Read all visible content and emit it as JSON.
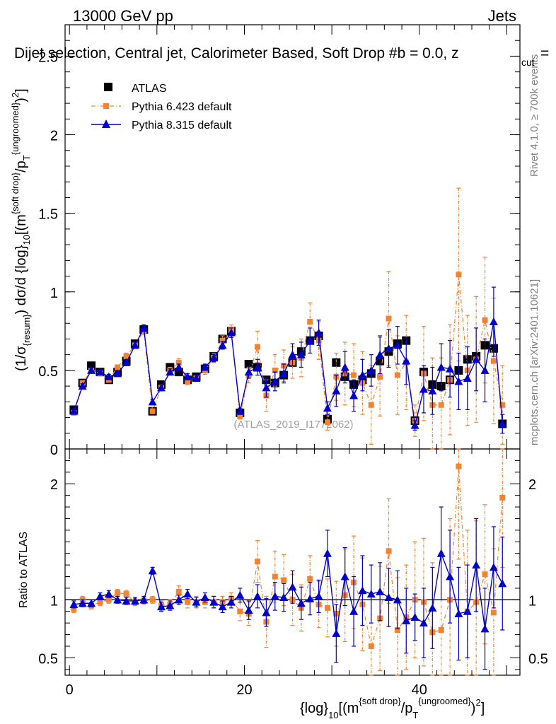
{
  "header": {
    "energy_label": "13000 GeV pp",
    "category_label": "Jets",
    "plot_title": "Dijet selection, Central jet, Calorimeter Based, Soft Drop #b = 0.0, z",
    "plot_title_sub": "cut",
    "plot_title_end": " ="
  },
  "side_text": {
    "rivet": "Rivet 4.1.0, ≥ 700k events",
    "mcplots": "mcplots.cern.ch [arXiv:2401.10621]"
  },
  "watermark": "(ATLAS_2019_I1772062)",
  "axes": {
    "ylabel_main": "(1/σ{resum}) dσ/d {log}10[(m{soft drop}/pT{ungroomed})²]",
    "ylabel_ratio": "Ratio to ATLAS",
    "xlabel": "{log}10[(m{soft drop}/pT{ungroomed})²]"
  },
  "colors": {
    "atlas": "#000000",
    "pythia6": "#f5822f",
    "pythia8": "#0000cc"
  },
  "chart_data": [
    {
      "type": "scatter",
      "panel": "main",
      "xlim": [
        -0.5,
        51.5
      ],
      "ylim": [
        0,
        2.7
      ],
      "yticks": [
        0,
        0.5,
        1,
        1.5,
        2,
        2.5
      ],
      "ytick_labels": [
        "0",
        "0.5",
        "1",
        "1.5",
        "2",
        "2.5"
      ],
      "legend_position": "top-left",
      "legend": [
        "ATLAS",
        "Pythia 6.423 default",
        "Pythia 8.315 default"
      ],
      "series": [
        {
          "name": "ATLAS",
          "style": "square",
          "x": [
            0.5,
            1.5,
            2.5,
            3.5,
            4.5,
            5.5,
            6.5,
            7.5,
            8.5,
            9.5,
            10.5,
            11.5,
            12.5,
            13.5,
            14.5,
            15.5,
            16.5,
            17.5,
            18.5,
            19.5,
            20.5,
            21.5,
            22.5,
            23.5,
            24.5,
            25.5,
            26.5,
            27.5,
            28.5,
            29.5,
            30.5,
            31.5,
            32.5,
            33.5,
            34.5,
            35.5,
            36.5,
            37.5,
            38.5,
            39.5,
            40.5,
            41.5,
            42.5,
            43.5,
            44.5,
            45.5,
            46.5,
            47.5,
            48.5,
            49.5
          ],
          "values": [
            0.25,
            0.42,
            0.53,
            0.49,
            0.44,
            0.49,
            0.56,
            0.67,
            0.76,
            0.24,
            0.41,
            0.52,
            0.49,
            0.44,
            0.46,
            0.51,
            0.59,
            0.7,
            0.75,
            0.23,
            0.54,
            0.52,
            0.44,
            0.42,
            0.47,
            0.55,
            0.62,
            0.69,
            0.72,
            0.19,
            0.55,
            0.46,
            0.41,
            0.44,
            0.48,
            0.56,
            0.62,
            0.67,
            0.69,
            0.18,
            0.49,
            0.41,
            0.4,
            0.44,
            0.5,
            0.57,
            0.59,
            0.66,
            0.64,
            0.16
          ]
        },
        {
          "name": "Pythia 6.423 default",
          "style": "square-dashdot",
          "x": [
            0.5,
            1.5,
            2.5,
            3.5,
            4.5,
            5.5,
            6.5,
            7.5,
            8.5,
            9.5,
            10.5,
            11.5,
            12.5,
            13.5,
            14.5,
            15.5,
            16.5,
            17.5,
            18.5,
            19.5,
            20.5,
            21.5,
            22.5,
            23.5,
            24.5,
            25.5,
            26.5,
            27.5,
            28.5,
            29.5,
            30.5,
            31.5,
            32.5,
            33.5,
            34.5,
            35.5,
            36.5,
            37.5,
            38.5,
            39.5,
            40.5,
            41.5,
            42.5,
            43.5,
            44.5,
            45.5,
            46.5,
            47.5,
            48.5,
            49.5
          ],
          "values": [
            0.23,
            0.42,
            0.5,
            0.48,
            0.44,
            0.52,
            0.59,
            0.66,
            0.75,
            0.24,
            0.39,
            0.5,
            0.55,
            0.43,
            0.45,
            0.5,
            0.58,
            0.69,
            0.76,
            0.21,
            0.47,
            0.65,
            0.34,
            0.5,
            0.53,
            0.55,
            0.58,
            0.81,
            0.69,
            0.17,
            0.46,
            0.48,
            0.47,
            0.42,
            0.28,
            0.46,
            0.83,
            0.47,
            0.55,
            0.18,
            0.48,
            0.28,
            0.28,
            0.44,
            1.11,
            0.5,
            0.57,
            0.82,
            0.56,
            0.28
          ],
          "errors": [
            0.015,
            0.015,
            0.015,
            0.015,
            0.015,
            0.015,
            0.02,
            0.02,
            0.02,
            0.015,
            0.02,
            0.02,
            0.025,
            0.02,
            0.02,
            0.025,
            0.03,
            0.03,
            0.03,
            0.02,
            0.05,
            0.1,
            0.1,
            0.1,
            0.1,
            0.1,
            0.12,
            0.12,
            0.12,
            0.05,
            0.15,
            0.2,
            0.2,
            0.2,
            0.25,
            0.25,
            0.3,
            0.25,
            0.3,
            0.1,
            0.3,
            0.3,
            0.3,
            0.35,
            0.55,
            0.35,
            0.4,
            0.4,
            0.4,
            0.25
          ]
        },
        {
          "name": "Pythia 8.315 default",
          "style": "triangle-solid",
          "x": [
            0.5,
            1.5,
            2.5,
            3.5,
            4.5,
            5.5,
            6.5,
            7.5,
            8.5,
            9.5,
            10.5,
            11.5,
            12.5,
            13.5,
            14.5,
            15.5,
            16.5,
            17.5,
            18.5,
            19.5,
            20.5,
            21.5,
            22.5,
            23.5,
            24.5,
            25.5,
            26.5,
            27.5,
            28.5,
            29.5,
            30.5,
            31.5,
            32.5,
            33.5,
            34.5,
            35.5,
            36.5,
            37.5,
            38.5,
            39.5,
            40.5,
            41.5,
            42.5,
            43.5,
            44.5,
            45.5,
            46.5,
            47.5,
            48.5,
            49.5
          ],
          "values": [
            0.24,
            0.4,
            0.5,
            0.49,
            0.46,
            0.48,
            0.55,
            0.66,
            0.77,
            0.3,
            0.39,
            0.49,
            0.52,
            0.46,
            0.45,
            0.52,
            0.58,
            0.66,
            0.74,
            0.24,
            0.49,
            0.52,
            0.39,
            0.43,
            0.48,
            0.6,
            0.6,
            0.69,
            0.74,
            0.26,
            0.37,
            0.52,
            0.34,
            0.47,
            0.5,
            0.6,
            0.64,
            0.66,
            0.56,
            0.15,
            0.38,
            0.37,
            0.52,
            0.51,
            0.43,
            0.45,
            0.57,
            0.5,
            0.81,
            0.16
          ],
          "errors": [
            0.015,
            0.015,
            0.015,
            0.015,
            0.015,
            0.015,
            0.02,
            0.02,
            0.02,
            0.015,
            0.02,
            0.02,
            0.02,
            0.02,
            0.02,
            0.02,
            0.025,
            0.025,
            0.03,
            0.02,
            0.04,
            0.05,
            0.06,
            0.06,
            0.06,
            0.07,
            0.08,
            0.08,
            0.08,
            0.04,
            0.1,
            0.1,
            0.1,
            0.1,
            0.1,
            0.12,
            0.12,
            0.12,
            0.15,
            0.03,
            0.15,
            0.15,
            0.15,
            0.18,
            0.18,
            0.2,
            0.2,
            0.2,
            0.22,
            0.06
          ]
        }
      ]
    },
    {
      "type": "scatter",
      "panel": "ratio",
      "xlim": [
        -0.5,
        51.5
      ],
      "ylim": [
        0.35,
        2.3
      ],
      "yticks": [
        0.5,
        1,
        2
      ],
      "ytick_labels": [
        "0.5",
        "1",
        "2"
      ],
      "xticks": [
        0,
        20,
        40
      ],
      "xtick_labels": [
        "0",
        "20",
        "40"
      ],
      "reference_line": 1,
      "series": [
        {
          "name": "Pythia 6.423 default",
          "x": [
            0.5,
            1.5,
            2.5,
            3.5,
            4.5,
            5.5,
            6.5,
            7.5,
            8.5,
            9.5,
            10.5,
            11.5,
            12.5,
            13.5,
            14.5,
            15.5,
            16.5,
            17.5,
            18.5,
            19.5,
            20.5,
            21.5,
            22.5,
            23.5,
            24.5,
            25.5,
            26.5,
            27.5,
            28.5,
            29.5,
            30.5,
            31.5,
            32.5,
            33.5,
            34.5,
            35.5,
            36.5,
            37.5,
            38.5,
            39.5,
            40.5,
            41.5,
            42.5,
            43.5,
            44.5,
            45.5,
            46.5,
            47.5,
            48.5,
            49.5
          ],
          "values": [
            0.92,
            1.0,
            0.95,
            0.98,
            1.0,
            1.06,
            1.05,
            0.98,
            0.99,
            1.0,
            0.95,
            0.96,
            1.07,
            0.98,
            0.98,
            0.98,
            0.98,
            0.98,
            1.01,
            0.9,
            0.88,
            1.33,
            0.81,
            1.2,
            1.17,
            1.0,
            0.93,
            1.18,
            0.96,
            0.93,
            0.88,
            1.04,
            1.15,
            0.96,
            0.6,
            0.84,
            1.42,
            0.74,
            0.85,
            1.0,
            0.98,
            0.72,
            0.74,
            1.0,
            2.15,
            0.9,
            0.98,
            1.22,
            0.89,
            1.88
          ],
          "errors": [
            0.03,
            0.03,
            0.03,
            0.03,
            0.03,
            0.03,
            0.03,
            0.03,
            0.03,
            0.03,
            0.04,
            0.04,
            0.05,
            0.05,
            0.05,
            0.05,
            0.05,
            0.05,
            0.05,
            0.08,
            0.1,
            0.18,
            0.22,
            0.22,
            0.22,
            0.22,
            0.2,
            0.2,
            0.2,
            0.25,
            0.28,
            0.4,
            0.4,
            0.4,
            0.45,
            0.45,
            0.45,
            0.45,
            0.45,
            0.5,
            0.55,
            0.6,
            0.65,
            0.7,
            0.8,
            0.7,
            0.7,
            0.6,
            0.55,
            0.6
          ]
        },
        {
          "name": "Pythia 8.315 default",
          "x": [
            0.5,
            1.5,
            2.5,
            3.5,
            4.5,
            5.5,
            6.5,
            7.5,
            8.5,
            9.5,
            10.5,
            11.5,
            12.5,
            13.5,
            14.5,
            15.5,
            16.5,
            17.5,
            18.5,
            19.5,
            20.5,
            21.5,
            22.5,
            23.5,
            24.5,
            25.5,
            26.5,
            27.5,
            28.5,
            29.5,
            30.5,
            31.5,
            32.5,
            33.5,
            34.5,
            35.5,
            36.5,
            37.5,
            38.5,
            39.5,
            40.5,
            41.5,
            42.5,
            43.5,
            44.5,
            45.5,
            46.5,
            47.5,
            48.5,
            49.5
          ],
          "values": [
            0.96,
            0.97,
            0.97,
            1.03,
            1.05,
            1.0,
            0.99,
            0.99,
            1.0,
            1.25,
            0.94,
            0.95,
            1.0,
            1.05,
            0.98,
            1.02,
            0.98,
            0.94,
            0.98,
            1.04,
            0.91,
            1.03,
            0.89,
            1.03,
            1.02,
            1.11,
            0.97,
            1.01,
            1.03,
            1.4,
            0.71,
            1.2,
            0.9,
            1.08,
            1.05,
            1.07,
            1.02,
            1.0,
            0.82,
            0.85,
            0.8,
            0.93,
            1.4,
            1.2,
            0.88,
            0.9,
            1.3,
            0.75,
            1.28,
            1.14
          ],
          "errors": [
            0.03,
            0.03,
            0.03,
            0.03,
            0.03,
            0.03,
            0.03,
            0.03,
            0.03,
            0.03,
            0.04,
            0.04,
            0.04,
            0.04,
            0.04,
            0.04,
            0.05,
            0.05,
            0.05,
            0.06,
            0.08,
            0.1,
            0.12,
            0.12,
            0.12,
            0.14,
            0.14,
            0.14,
            0.14,
            0.2,
            0.25,
            0.25,
            0.3,
            0.3,
            0.25,
            0.25,
            0.25,
            0.25,
            0.28,
            0.2,
            0.3,
            0.35,
            0.4,
            0.4,
            0.4,
            0.4,
            0.4,
            0.35,
            0.35,
            0.4
          ]
        }
      ]
    }
  ]
}
